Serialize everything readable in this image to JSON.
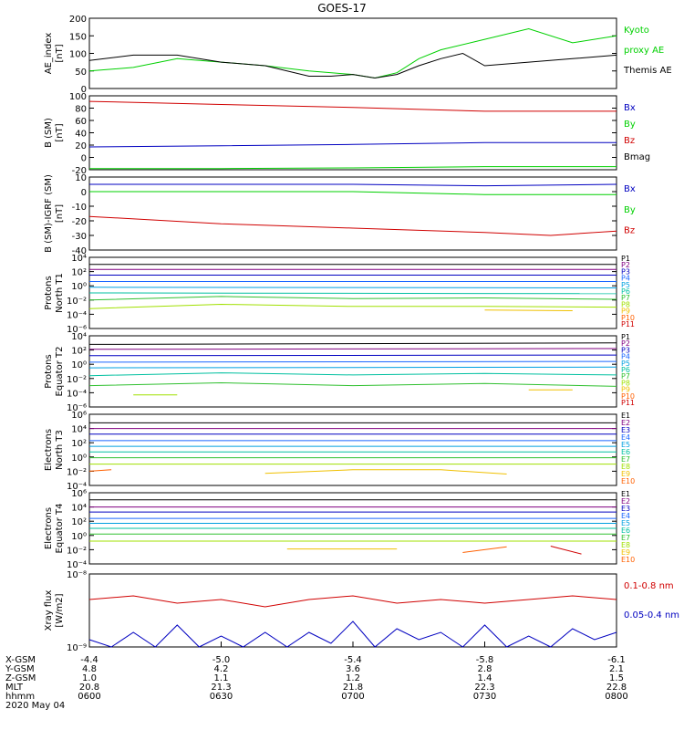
{
  "title": "GOES-17",
  "colors": {
    "black": "#000000",
    "red": "#d00000",
    "green": "#00d000",
    "blue": "#0000c0",
    "P": [
      "#000000",
      "#800080",
      "#0000c0",
      "#1a66ff",
      "#00a0e0",
      "#00c0a0",
      "#30c030",
      "#a0e000",
      "#f0c000",
      "#ff6000",
      "#d00000"
    ],
    "E": [
      "#000000",
      "#800080",
      "#0000c0",
      "#1a66ff",
      "#00a0e0",
      "#00c0a0",
      "#30c030",
      "#a0e000",
      "#f0c000",
      "#ff6000",
      "#d00000"
    ]
  },
  "chart_data": [
    {
      "type": "line",
      "id": "ae",
      "ylabel": [
        "AE_index",
        "[nT]"
      ],
      "ylim": [
        0,
        200
      ],
      "yticks": [
        "0",
        "50",
        "100",
        "150",
        "200"
      ],
      "legend": [
        {
          "text": "Kyoto",
          "color": "#00d000"
        },
        {
          "text": "proxy AE",
          "color": "#00d000"
        },
        {
          "text": "Themis AE",
          "color": "#000000"
        }
      ],
      "series": [
        {
          "color": "#00d000",
          "x": [
            0,
            10,
            20,
            30,
            40,
            50,
            60,
            65,
            70,
            75,
            80,
            90,
            100,
            110,
            120
          ],
          "y": [
            50,
            60,
            85,
            75,
            65,
            50,
            40,
            30,
            45,
            85,
            110,
            140,
            170,
            130,
            150
          ]
        },
        {
          "color": "#000000",
          "x": [
            0,
            10,
            20,
            30,
            40,
            50,
            55,
            60,
            65,
            70,
            75,
            80,
            85,
            90,
            100,
            110,
            120
          ],
          "y": [
            80,
            95,
            95,
            75,
            65,
            35,
            35,
            40,
            30,
            40,
            65,
            85,
            100,
            65,
            75,
            85,
            95
          ]
        }
      ]
    },
    {
      "type": "line",
      "id": "bsm",
      "ylabel": [
        "B (SM)",
        "[nT]"
      ],
      "ylim": [
        -20,
        100
      ],
      "yticks": [
        "-20",
        "0",
        "20",
        "40",
        "60",
        "80",
        "100"
      ],
      "legend": [
        {
          "text": "Bx",
          "color": "#0000c0"
        },
        {
          "text": "By",
          "color": "#00d000"
        },
        {
          "text": "Bz",
          "color": "#d00000"
        },
        {
          "text": "Bmag",
          "color": "#000000"
        }
      ],
      "series": [
        {
          "color": "#d00000",
          "x": [
            0,
            30,
            60,
            90,
            120
          ],
          "y": [
            91,
            86,
            81,
            75,
            75
          ]
        },
        {
          "color": "#0000c0",
          "x": [
            0,
            30,
            60,
            90,
            120
          ],
          "y": [
            17,
            19,
            21,
            24,
            24
          ]
        },
        {
          "color": "#00d000",
          "x": [
            0,
            30,
            60,
            90,
            120
          ],
          "y": [
            -18,
            -18,
            -17,
            -15,
            -15
          ]
        }
      ]
    },
    {
      "type": "line",
      "id": "bigrf",
      "ylabel": [
        "B (SM)-IGRF (SM)",
        "[nT]"
      ],
      "ylim": [
        -40,
        10
      ],
      "yticks": [
        "-40",
        "-30",
        "-20",
        "-10",
        "0",
        "10"
      ],
      "legend": [
        {
          "text": "Bx",
          "color": "#0000c0"
        },
        {
          "text": "By",
          "color": "#00d000"
        },
        {
          "text": "Bz",
          "color": "#d00000"
        }
      ],
      "series": [
        {
          "color": "#0000c0",
          "x": [
            0,
            30,
            60,
            90,
            120
          ],
          "y": [
            5,
            5,
            5,
            4,
            5
          ]
        },
        {
          "color": "#00d000",
          "x": [
            0,
            30,
            60,
            90,
            120
          ],
          "y": [
            0,
            0,
            0,
            -2,
            -2
          ]
        },
        {
          "color": "#d00000",
          "x": [
            0,
            30,
            60,
            90,
            105,
            120
          ],
          "y": [
            -17,
            -22,
            -25,
            -28,
            -30,
            -27
          ]
        }
      ]
    },
    {
      "type": "line",
      "id": "pt1",
      "ylabel": [
        "Protons",
        "North T1"
      ],
      "log": true,
      "ylim": [
        -6,
        4
      ],
      "yticks": [
        "10⁴",
        "10²",
        "10⁰",
        "10⁻²",
        "10⁻⁴",
        "10⁻⁶"
      ],
      "legend": [
        "P1",
        "P2",
        "P3",
        "P4",
        "P5",
        "P6",
        "P7",
        "P8",
        "P9",
        "P10",
        "P11"
      ],
      "series": [
        {
          "x": [
            0,
            120
          ],
          "y": [
            3.0,
            3.0
          ]
        },
        {
          "x": [
            0,
            120
          ],
          "y": [
            2.3,
            2.3
          ]
        },
        {
          "x": [
            0,
            120
          ],
          "y": [
            1.5,
            1.5
          ]
        },
        {
          "x": [
            0,
            120
          ],
          "y": [
            0.6,
            0.6
          ]
        },
        {
          "x": [
            0,
            120
          ],
          "y": [
            -0.2,
            -0.3
          ]
        },
        {
          "x": [
            0,
            120
          ],
          "y": [
            -1.0,
            -1.1
          ]
        },
        {
          "x": [
            0,
            30,
            60,
            90,
            120
          ],
          "y": [
            -2.0,
            -1.5,
            -1.8,
            -1.7,
            -1.9
          ]
        },
        {
          "x": [
            0,
            30,
            60,
            90,
            120
          ],
          "y": [
            -3.2,
            -2.6,
            -2.9,
            -2.9,
            -3.0
          ]
        },
        {
          "x": [
            90,
            110
          ],
          "y": [
            -3.4,
            -3.5
          ]
        }
      ]
    },
    {
      "type": "line",
      "id": "pt2",
      "ylabel": [
        "Protons",
        "Equator T2"
      ],
      "log": true,
      "ylim": [
        -6,
        4
      ],
      "yticks": [
        "10⁴",
        "10²",
        "10⁰",
        "10⁻²",
        "10⁻⁴",
        "10⁻⁶"
      ],
      "legend": [
        "P1",
        "P2",
        "P3",
        "P4",
        "P5",
        "P6",
        "P7",
        "P8",
        "P9",
        "P10",
        "P11"
      ],
      "series": [
        {
          "x": [
            0,
            120
          ],
          "y": [
            2.8,
            3.0
          ]
        },
        {
          "x": [
            0,
            120
          ],
          "y": [
            2.1,
            2.2
          ]
        },
        {
          "x": [
            0,
            120
          ],
          "y": [
            1.2,
            1.3
          ]
        },
        {
          "x": [
            0,
            120
          ],
          "y": [
            0.3,
            0.4
          ]
        },
        {
          "x": [
            0,
            120
          ],
          "y": [
            -0.5,
            -0.4
          ]
        },
        {
          "x": [
            0,
            30,
            60,
            90,
            120
          ],
          "y": [
            -1.6,
            -1.2,
            -1.5,
            -1.3,
            -1.5
          ]
        },
        {
          "x": [
            0,
            30,
            60,
            90,
            120
          ],
          "y": [
            -3.0,
            -2.6,
            -3.0,
            -2.7,
            -3.1
          ]
        },
        {
          "x": [
            10,
            20
          ],
          "y": [
            -4.3,
            -4.3
          ]
        },
        {
          "x": [
            100,
            110
          ],
          "y": [
            -3.6,
            -3.6
          ]
        }
      ]
    },
    {
      "type": "line",
      "id": "et3",
      "ylabel": [
        "Electrons",
        "North T3"
      ],
      "log": true,
      "ylim": [
        -4,
        6
      ],
      "yticks": [
        "10⁶",
        "10⁴",
        "10²",
        "10⁰",
        "10⁻²",
        "10⁻⁴"
      ],
      "legend": [
        "E1",
        "E2",
        "E3",
        "E4",
        "E5",
        "E6",
        "E7",
        "E8",
        "E9",
        "E10"
      ],
      "series": [
        {
          "x": [
            0,
            120
          ],
          "y": [
            4.8,
            4.8
          ]
        },
        {
          "x": [
            0,
            120
          ],
          "y": [
            4.0,
            4.0
          ]
        },
        {
          "x": [
            0,
            120
          ],
          "y": [
            3.2,
            3.2
          ]
        },
        {
          "x": [
            0,
            120
          ],
          "y": [
            2.3,
            2.3
          ]
        },
        {
          "x": [
            0,
            120
          ],
          "y": [
            1.5,
            1.5
          ]
        },
        {
          "x": [
            0,
            120
          ],
          "y": [
            0.7,
            0.7
          ]
        },
        {
          "x": [
            0,
            120
          ],
          "y": [
            -0.1,
            -0.1
          ]
        },
        {
          "x": [
            0,
            120
          ],
          "y": [
            -1.0,
            -1.0
          ]
        },
        {
          "x": [
            40,
            60,
            80,
            95
          ],
          "y": [
            -2.3,
            -1.8,
            -1.8,
            -2.4
          ]
        },
        {
          "x": [
            0,
            5
          ],
          "y": [
            -2.0,
            -1.8
          ]
        }
      ]
    },
    {
      "type": "line",
      "id": "et4",
      "ylabel": [
        "Electrons",
        "Equator T4"
      ],
      "log": true,
      "ylim": [
        -4,
        6
      ],
      "yticks": [
        "10⁶",
        "10⁴",
        "10²",
        "10⁰",
        "10⁻²",
        "10⁻⁴"
      ],
      "legend": [
        "E1",
        "E2",
        "E3",
        "E4",
        "E5",
        "E6",
        "E7",
        "E8",
        "E9",
        "E10"
      ],
      "series": [
        {
          "x": [
            0,
            120
          ],
          "y": [
            5.0,
            5.0
          ]
        },
        {
          "x": [
            0,
            120
          ],
          "y": [
            4.0,
            4.0
          ]
        },
        {
          "x": [
            0,
            120
          ],
          "y": [
            3.3,
            3.3
          ]
        },
        {
          "x": [
            0,
            120
          ],
          "y": [
            2.4,
            2.4
          ]
        },
        {
          "x": [
            0,
            120
          ],
          "y": [
            1.7,
            1.7
          ]
        },
        {
          "x": [
            0,
            120
          ],
          "y": [
            1.0,
            1.0
          ]
        },
        {
          "x": [
            0,
            120
          ],
          "y": [
            0.2,
            0.2
          ]
        },
        {
          "x": [
            0,
            120
          ],
          "y": [
            -0.8,
            -0.8
          ]
        },
        {
          "x": [
            45,
            70
          ],
          "y": [
            -1.9,
            -1.9
          ]
        },
        {
          "x": [
            85,
            95
          ],
          "y": [
            -2.4,
            -1.6
          ]
        },
        {
          "x": [
            105,
            112
          ],
          "y": [
            -1.5,
            -2.6
          ]
        }
      ]
    },
    {
      "type": "line",
      "id": "xray",
      "ylabel": [
        "Xray flux",
        "[W/m2]"
      ],
      "log": true,
      "ylim": [
        -9,
        -8
      ],
      "yticks": [
        "10⁻⁸",
        "10⁻⁹"
      ],
      "legend": [
        {
          "text": "0.1-0.8 nm",
          "color": "#d00000"
        },
        {
          "text": "0.05-0.4 nm",
          "color": "#0000c0"
        }
      ],
      "series": [
        {
          "color": "#d00000",
          "x": [
            0,
            10,
            20,
            30,
            40,
            50,
            60,
            70,
            80,
            90,
            100,
            110,
            120
          ],
          "y": [
            -8.35,
            -8.3,
            -8.4,
            -8.35,
            -8.45,
            -8.35,
            -8.3,
            -8.4,
            -8.35,
            -8.4,
            -8.35,
            -8.3,
            -8.35
          ]
        },
        {
          "color": "#0000c0",
          "x": [
            0,
            5,
            10,
            15,
            20,
            25,
            30,
            35,
            40,
            45,
            50,
            55,
            60,
            65,
            70,
            75,
            80,
            85,
            90,
            95,
            100,
            105,
            110,
            115,
            120
          ],
          "y": [
            -8.9,
            -9.0,
            -8.8,
            -9.0,
            -8.7,
            -9.0,
            -8.85,
            -9.0,
            -8.8,
            -9.0,
            -8.8,
            -8.95,
            -8.65,
            -9.0,
            -8.75,
            -8.9,
            -8.8,
            -9.0,
            -8.7,
            -9.0,
            -8.85,
            -9.0,
            -8.75,
            -8.9,
            -8.8
          ]
        }
      ]
    }
  ],
  "xaxis": {
    "rows": [
      {
        "label": "X-GSM",
        "values": [
          "-4.4",
          "-5.0",
          "-5.4",
          "-5.8",
          "-6.1"
        ]
      },
      {
        "label": "Y-GSM",
        "values": [
          "4.8",
          "4.2",
          "3.6",
          "2.8",
          "2.1"
        ]
      },
      {
        "label": "Z-GSM",
        "values": [
          "1.0",
          "1.1",
          "1.2",
          "1.4",
          "1.5"
        ]
      },
      {
        "label": "MLT",
        "values": [
          "20.8",
          "21.3",
          "21.8",
          "22.3",
          "22.8"
        ]
      },
      {
        "label": "hhmm",
        "values": [
          "0600",
          "0630",
          "0700",
          "0730",
          "0800"
        ]
      }
    ],
    "date": "2020 May 04",
    "xlim": [
      0,
      120
    ]
  }
}
